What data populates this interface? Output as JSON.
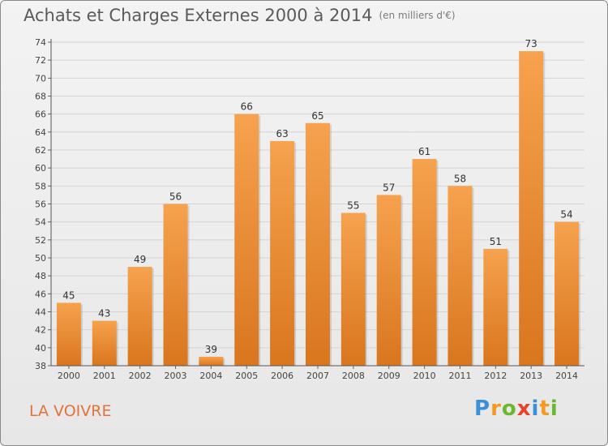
{
  "header": {
    "title": "Achats et Charges Externes 2000 à 2014",
    "subtitle": "(en milliers d'€)"
  },
  "footer": {
    "commune": "LA VOIVRE",
    "logo_letters": [
      "P",
      "r",
      "o",
      "x",
      "i",
      "t",
      "i"
    ],
    "logo_colors": [
      "#3a8fd6",
      "#f39a20",
      "#6ab82e",
      "#e8412c",
      "#3a8fd6",
      "#f39a20",
      "#6ab82e"
    ]
  },
  "chart_data": {
    "type": "bar",
    "categories": [
      "2000",
      "2001",
      "2002",
      "2003",
      "2004",
      "2005",
      "2006",
      "2007",
      "2008",
      "2009",
      "2010",
      "2011",
      "2012",
      "2013",
      "2014"
    ],
    "values": [
      45,
      43,
      49,
      56,
      39,
      66,
      63,
      65,
      55,
      57,
      61,
      58,
      51,
      73,
      54
    ],
    "data_labels": [
      "45",
      "43",
      "49",
      "56",
      "39",
      "66",
      "63",
      "65",
      "55",
      "57",
      "61",
      "58",
      "51",
      "73",
      "54"
    ],
    "ylim": [
      38,
      74
    ],
    "yticks": [
      38,
      40,
      42,
      44,
      46,
      48,
      50,
      52,
      54,
      56,
      58,
      60,
      62,
      64,
      66,
      68,
      70,
      72,
      74
    ],
    "grid": true,
    "bar_color_top": "#f6a24e",
    "bar_color_bottom": "#d9761e",
    "grid_color": "#d4d4d4",
    "axis_text_color": "#444444"
  }
}
